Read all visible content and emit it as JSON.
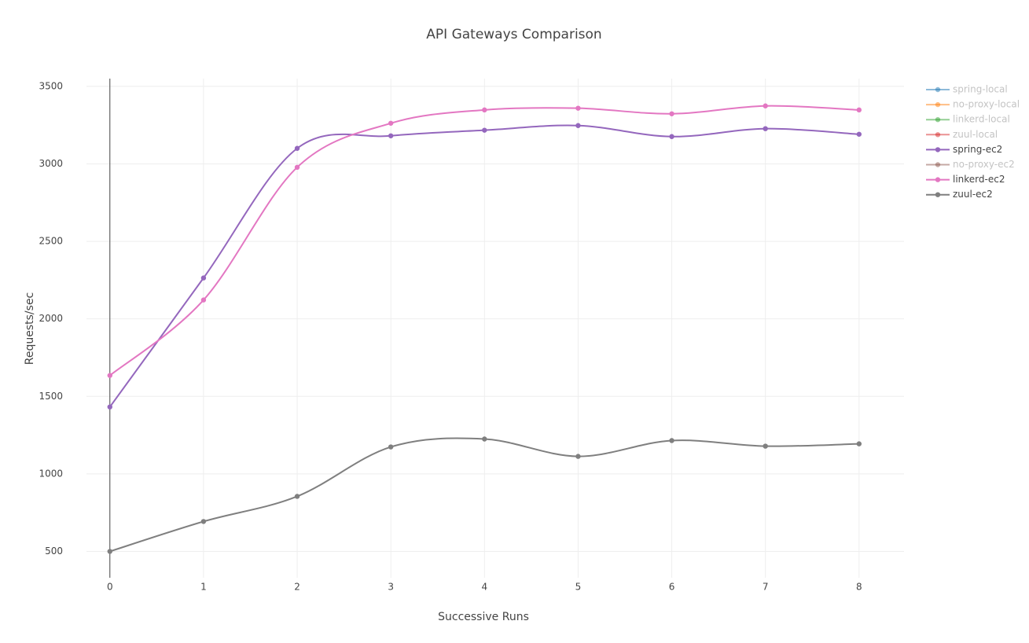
{
  "chart_data": {
    "type": "line",
    "title": "API Gateways Comparison",
    "x_label": "Successive Runs",
    "y_label": "Requests/sec",
    "x": [
      0,
      1,
      2,
      3,
      4,
      5,
      6,
      7,
      8
    ],
    "xlim": [
      -0.25,
      8.48
    ],
    "xticks": [
      0,
      1,
      2,
      3,
      4,
      5,
      6,
      7,
      8
    ],
    "ylim": [
      330,
      3550
    ],
    "yticks": [
      500,
      1000,
      1500,
      2000,
      2500,
      3000,
      3500
    ],
    "grid": true,
    "line_shape": "spline",
    "legend_position": "right",
    "series": [
      {
        "name": "spring-local",
        "color": "#1f77b4",
        "visible": "legendonly",
        "values": [
          null,
          null,
          null,
          null,
          null,
          null,
          null,
          null,
          null
        ]
      },
      {
        "name": "no-proxy-local",
        "color": "#ff7f0e",
        "visible": "legendonly",
        "values": [
          null,
          null,
          null,
          null,
          null,
          null,
          null,
          null,
          null
        ]
      },
      {
        "name": "linkerd-local",
        "color": "#2ca02c",
        "visible": "legendonly",
        "values": [
          null,
          null,
          null,
          null,
          null,
          null,
          null,
          null,
          null
        ]
      },
      {
        "name": "zuul-local",
        "color": "#d62728",
        "visible": "legendonly",
        "values": [
          null,
          null,
          null,
          null,
          null,
          null,
          null,
          null,
          null
        ]
      },
      {
        "name": "spring-ec2",
        "color": "#9467bd",
        "visible": "true",
        "values": [
          1432,
          2264,
          3100,
          3181,
          3217,
          3247,
          3176,
          3227,
          3191
        ]
      },
      {
        "name": "no-proxy-ec2",
        "color": "#8c564b",
        "visible": "legendonly",
        "values": [
          null,
          null,
          null,
          null,
          null,
          null,
          null,
          null,
          null
        ]
      },
      {
        "name": "linkerd-ec2",
        "color": "#e377c2",
        "visible": "true",
        "values": [
          1635,
          2122,
          2978,
          3262,
          3348,
          3359,
          3323,
          3374,
          3348
        ]
      },
      {
        "name": "zuul-ec2",
        "color": "#7f7f7f",
        "visible": "true",
        "values": [
          500,
          693,
          855,
          1174,
          1225,
          1113,
          1215,
          1179,
          1194
        ]
      }
    ]
  }
}
